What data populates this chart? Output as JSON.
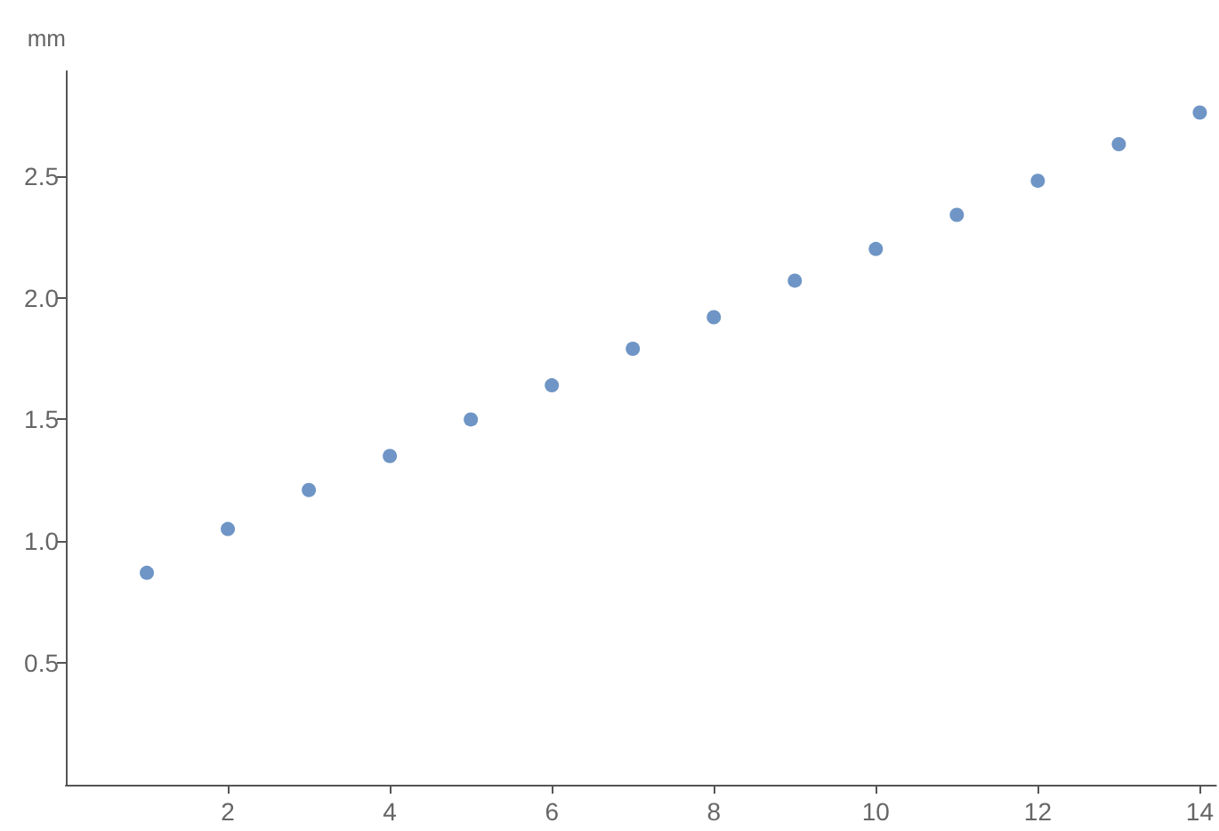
{
  "chart_data": {
    "type": "scatter",
    "ylabel": "mm",
    "x": [
      1,
      2,
      3,
      4,
      5,
      6,
      7,
      8,
      9,
      10,
      11,
      12,
      13,
      14
    ],
    "values": [
      0.87,
      1.05,
      1.21,
      1.35,
      1.5,
      1.64,
      1.79,
      1.92,
      2.07,
      2.2,
      2.34,
      2.48,
      2.63,
      2.76
    ],
    "color": "#4a7bb7",
    "marker": "circle",
    "grid": false,
    "xlim": [
      0,
      14.2
    ],
    "ylim": [
      0,
      2.93
    ],
    "xticks": [
      2,
      4,
      6,
      8,
      10,
      12,
      14
    ],
    "yticks": [
      0.5,
      {
        "value": 1,
        "label": "1.0"
      },
      1.5,
      {
        "value": 2,
        "label": "2.0"
      },
      2.5
    ]
  }
}
